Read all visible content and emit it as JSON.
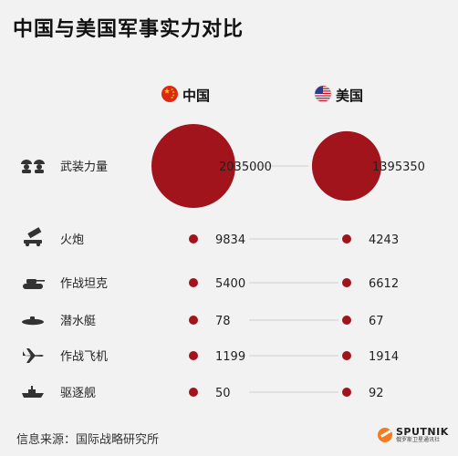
{
  "title": "中国与美国军事实力对比",
  "source": "信息来源：国际战略研究所",
  "logo": {
    "brand": "SPUTNIK",
    "sub": "俄罗斯卫星通讯社"
  },
  "colors": {
    "bubble": "#a1141b",
    "text": "#222222",
    "background": "#f2f2f2",
    "line": "#cfcfcf"
  },
  "chart_data": {
    "type": "bubble",
    "title": "中国与美国军事实力对比",
    "series": [
      {
        "name": "中国",
        "flag": "china-flag-icon"
      },
      {
        "name": "美国",
        "flag": "usa-flag-icon"
      }
    ],
    "categories": [
      {
        "label": "武装力量",
        "icon": "soldiers-icon",
        "values": [
          2035000,
          1395350
        ]
      },
      {
        "label": "火炮",
        "icon": "artillery-icon",
        "values": [
          9834,
          4243
        ]
      },
      {
        "label": "作战坦克",
        "icon": "tank-icon",
        "values": [
          5400,
          6612
        ]
      },
      {
        "label": "潜水艇",
        "icon": "submarine-icon",
        "values": [
          78,
          67
        ]
      },
      {
        "label": "作战飞机",
        "icon": "fighter-jet-icon",
        "values": [
          1199,
          1914
        ]
      },
      {
        "label": "驱逐舰",
        "icon": "destroyer-icon",
        "values": [
          50,
          92
        ]
      }
    ]
  }
}
